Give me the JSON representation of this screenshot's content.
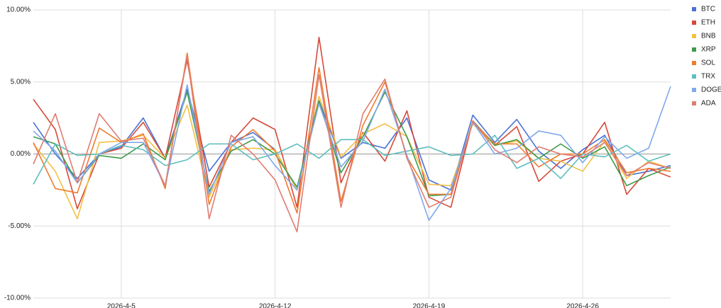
{
  "chart_data": {
    "type": "line",
    "categories": [
      null,
      null,
      null,
      null,
      "2026-4-5",
      null,
      null,
      null,
      null,
      null,
      null,
      "2026-4-12",
      null,
      null,
      null,
      null,
      null,
      null,
      "2026-4-19",
      null,
      null,
      null,
      null,
      null,
      null,
      "2026-4-26",
      null,
      null,
      null,
      null
    ],
    "ylim": [
      -10,
      10
    ],
    "yticks": [
      {
        "value": -10,
        "label": "-10.00%"
      },
      {
        "value": -5,
        "label": "-5.00%"
      },
      {
        "value": 0,
        "label": "0.00%"
      },
      {
        "value": 5,
        "label": "5.00%"
      },
      {
        "value": 10,
        "label": "10.00%"
      }
    ],
    "grid": true,
    "legend": "right",
    "series": [
      {
        "name": "BTC",
        "color": "#4a72d6",
        "values": [
          2.2,
          0.0,
          -1.7,
          0.0,
          0.5,
          2.5,
          -0.3,
          4.5,
          -1.2,
          0.8,
          1.5,
          0.3,
          -2.5,
          3.7,
          -0.3,
          0.8,
          0.4,
          2.5,
          -1.8,
          -2.5,
          2.7,
          0.8,
          2.4,
          0.2,
          -1.0,
          0.3,
          1.3,
          -1.5,
          -1.2,
          -0.8
        ]
      },
      {
        "name": "ETH",
        "color": "#d6493a",
        "values": [
          3.8,
          1.7,
          -3.8,
          0.0,
          0.4,
          2.2,
          -0.3,
          6.5,
          -2.3,
          0.8,
          2.5,
          1.7,
          -3.7,
          8.1,
          -2.0,
          1.5,
          -0.5,
          3.0,
          -3.0,
          -3.7,
          2.3,
          0.6,
          1.9,
          -1.9,
          -0.5,
          0.0,
          2.2,
          -2.8,
          -1.0,
          -1.6
        ]
      },
      {
        "name": "BNB",
        "color": "#f3c043",
        "values": [
          0.7,
          -1.2,
          -4.5,
          0.8,
          0.9,
          1.3,
          -0.3,
          3.4,
          -3.0,
          0.3,
          0.4,
          0.3,
          -2.5,
          4.0,
          -0.2,
          1.4,
          2.1,
          1.2,
          -2.1,
          -2.2,
          2.1,
          0.6,
          0.9,
          -0.3,
          -0.5,
          -1.2,
          0.9,
          -1.7,
          -0.5,
          -1.0
        ]
      },
      {
        "name": "XRP",
        "color": "#3f9a4a",
        "values": [
          1.2,
          0.7,
          -2.0,
          -0.1,
          -0.3,
          0.7,
          -0.4,
          4.3,
          -2.6,
          0.2,
          1.0,
          0.0,
          -2.3,
          3.7,
          -1.3,
          1.2,
          4.3,
          1.2,
          -2.9,
          -2.8,
          2.3,
          0.6,
          1.0,
          -0.3,
          0.7,
          -0.3,
          0.5,
          -2.2,
          -1.5,
          -0.9
        ]
      },
      {
        "name": "SOL",
        "color": "#f07b30",
        "values": [
          0.8,
          -2.4,
          -2.7,
          1.8,
          0.8,
          1.4,
          -2.4,
          7.0,
          -3.5,
          0.5,
          1.7,
          0.2,
          -4.1,
          6.0,
          -3.3,
          2.0,
          5.0,
          -0.2,
          -2.8,
          -2.8,
          2.2,
          0.7,
          0.7,
          -0.9,
          0.0,
          0.0,
          1.0,
          -1.3,
          -1.0,
          -1.2
        ]
      },
      {
        "name": "TRX",
        "color": "#5dbfbc",
        "values": [
          -2.1,
          0.7,
          -0.1,
          0.0,
          0.6,
          0.3,
          -0.8,
          -0.4,
          0.7,
          0.7,
          -0.4,
          0.0,
          0.7,
          -0.3,
          1.0,
          1.0,
          -0.1,
          0.2,
          0.5,
          -0.1,
          0.0,
          1.3,
          -1.0,
          -0.3,
          -1.7,
          0.0,
          -0.2,
          0.6,
          -0.5,
          0.0
        ]
      },
      {
        "name": "DOGE",
        "color": "#80a9ea",
        "values": [
          1.6,
          0.2,
          -2.0,
          0.0,
          0.8,
          0.8,
          -2.2,
          4.8,
          -2.8,
          0.8,
          1.2,
          -0.8,
          -2.5,
          3.5,
          -0.9,
          0.9,
          4.5,
          -0.1,
          -4.6,
          -2.4,
          2.2,
          0.0,
          0.4,
          1.6,
          1.3,
          -0.6,
          1.2,
          -0.3,
          0.4,
          4.7
        ]
      },
      {
        "name": "ADA",
        "color": "#e07d72",
        "values": [
          -0.7,
          2.8,
          -2.0,
          2.8,
          0.9,
          1.1,
          -2.2,
          6.8,
          -4.5,
          1.3,
          0.0,
          -1.8,
          -5.4,
          5.5,
          -3.7,
          2.8,
          5.2,
          -0.3,
          -3.7,
          -3.0,
          2.3,
          0.3,
          -0.6,
          0.5,
          0.0,
          -0.2,
          0.8,
          -1.5,
          -0.6,
          -1.0
        ]
      }
    ]
  }
}
